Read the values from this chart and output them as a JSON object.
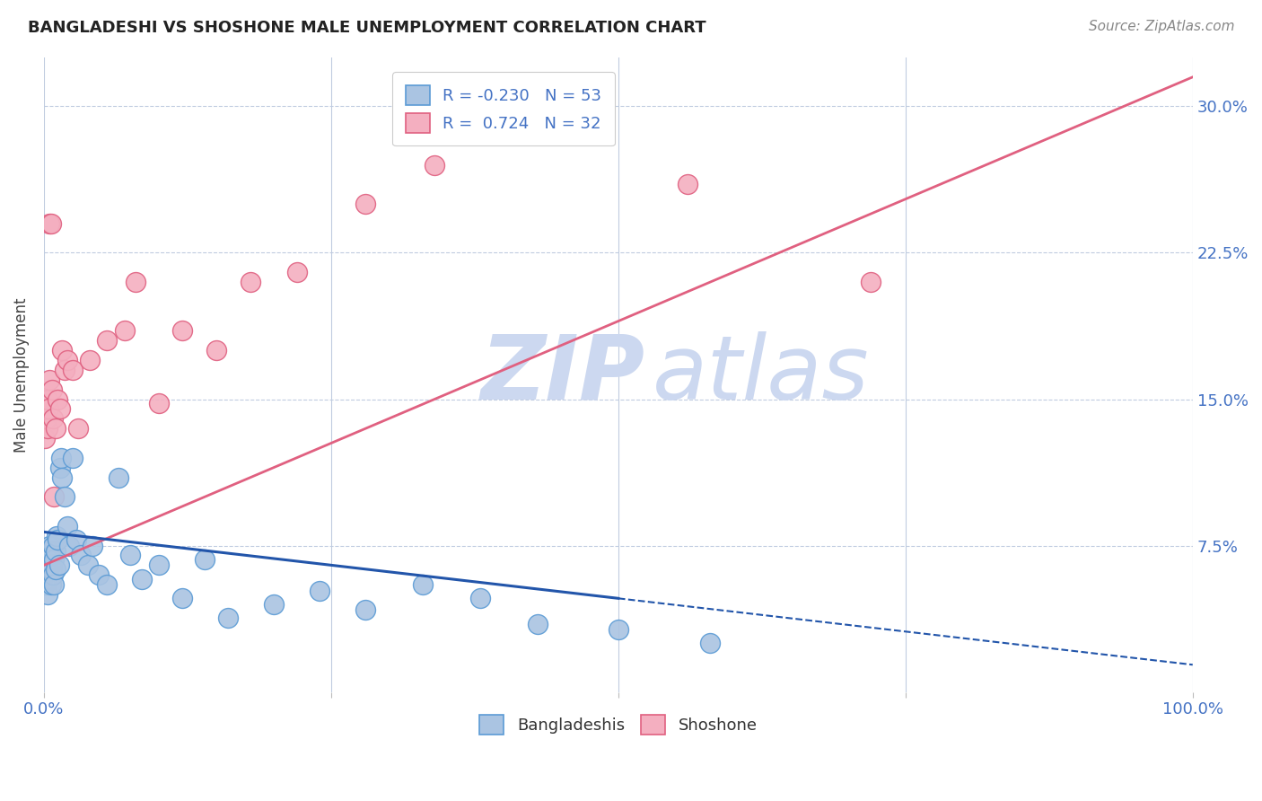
{
  "title": "BANGLADESHI VS SHOSHONE MALE UNEMPLOYMENT CORRELATION CHART",
  "source": "Source: ZipAtlas.com",
  "ylabel": "Male Unemployment",
  "ytick_labels": [
    "7.5%",
    "15.0%",
    "22.5%",
    "30.0%"
  ],
  "ytick_values": [
    0.075,
    0.15,
    0.225,
    0.3
  ],
  "xmin": 0.0,
  "xmax": 1.0,
  "ymin": 0.0,
  "ymax": 0.325,
  "bangladeshi_color": "#aac4e2",
  "bangladeshi_edge": "#5b9bd5",
  "shoshone_color": "#f4afc0",
  "shoshone_edge": "#e06080",
  "line_blue": "#2255aa",
  "line_pink": "#e06080",
  "bangladeshi_R": -0.23,
  "bangladeshi_N": 53,
  "shoshone_R": 0.724,
  "shoshone_N": 32,
  "watermark_zip": "ZIP",
  "watermark_atlas": "atlas",
  "watermark_color": "#ccd8f0",
  "legend_label1": "Bangladeshis",
  "legend_label2": "Shoshone",
  "bangladeshi_x": [
    0.001,
    0.001,
    0.002,
    0.002,
    0.003,
    0.003,
    0.003,
    0.004,
    0.004,
    0.005,
    0.005,
    0.005,
    0.006,
    0.006,
    0.007,
    0.007,
    0.008,
    0.008,
    0.009,
    0.009,
    0.01,
    0.01,
    0.011,
    0.012,
    0.013,
    0.014,
    0.015,
    0.016,
    0.018,
    0.02,
    0.022,
    0.025,
    0.028,
    0.032,
    0.038,
    0.042,
    0.048,
    0.055,
    0.065,
    0.075,
    0.085,
    0.1,
    0.12,
    0.14,
    0.16,
    0.2,
    0.24,
    0.28,
    0.33,
    0.38,
    0.43,
    0.5,
    0.58
  ],
  "bangladeshi_y": [
    0.06,
    0.055,
    0.058,
    0.062,
    0.05,
    0.065,
    0.07,
    0.062,
    0.068,
    0.072,
    0.058,
    0.075,
    0.065,
    0.055,
    0.063,
    0.07,
    0.06,
    0.075,
    0.068,
    0.055,
    0.072,
    0.063,
    0.08,
    0.078,
    0.065,
    0.115,
    0.12,
    0.11,
    0.1,
    0.085,
    0.075,
    0.12,
    0.078,
    0.07,
    0.065,
    0.075,
    0.06,
    0.055,
    0.11,
    0.07,
    0.058,
    0.065,
    0.048,
    0.068,
    0.038,
    0.045,
    0.052,
    0.042,
    0.055,
    0.048,
    0.035,
    0.032,
    0.025
  ],
  "shoshone_x": [
    0.001,
    0.002,
    0.003,
    0.003,
    0.004,
    0.005,
    0.005,
    0.006,
    0.007,
    0.008,
    0.009,
    0.01,
    0.012,
    0.014,
    0.016,
    0.018,
    0.02,
    0.025,
    0.03,
    0.04,
    0.055,
    0.07,
    0.08,
    0.1,
    0.12,
    0.15,
    0.18,
    0.22,
    0.28,
    0.34,
    0.56,
    0.72
  ],
  "shoshone_y": [
    0.13,
    0.14,
    0.15,
    0.135,
    0.145,
    0.16,
    0.24,
    0.24,
    0.155,
    0.14,
    0.1,
    0.135,
    0.15,
    0.145,
    0.175,
    0.165,
    0.17,
    0.165,
    0.135,
    0.17,
    0.18,
    0.185,
    0.21,
    0.148,
    0.185,
    0.175,
    0.21,
    0.215,
    0.25,
    0.27,
    0.26,
    0.21
  ],
  "bang_line_x0": 0.0,
  "bang_line_x1": 0.5,
  "bang_line_y0": 0.082,
  "bang_line_y1": 0.048,
  "sho_line_x0": 0.0,
  "sho_line_x1": 1.0,
  "sho_line_y0": 0.065,
  "sho_line_y1": 0.315
}
